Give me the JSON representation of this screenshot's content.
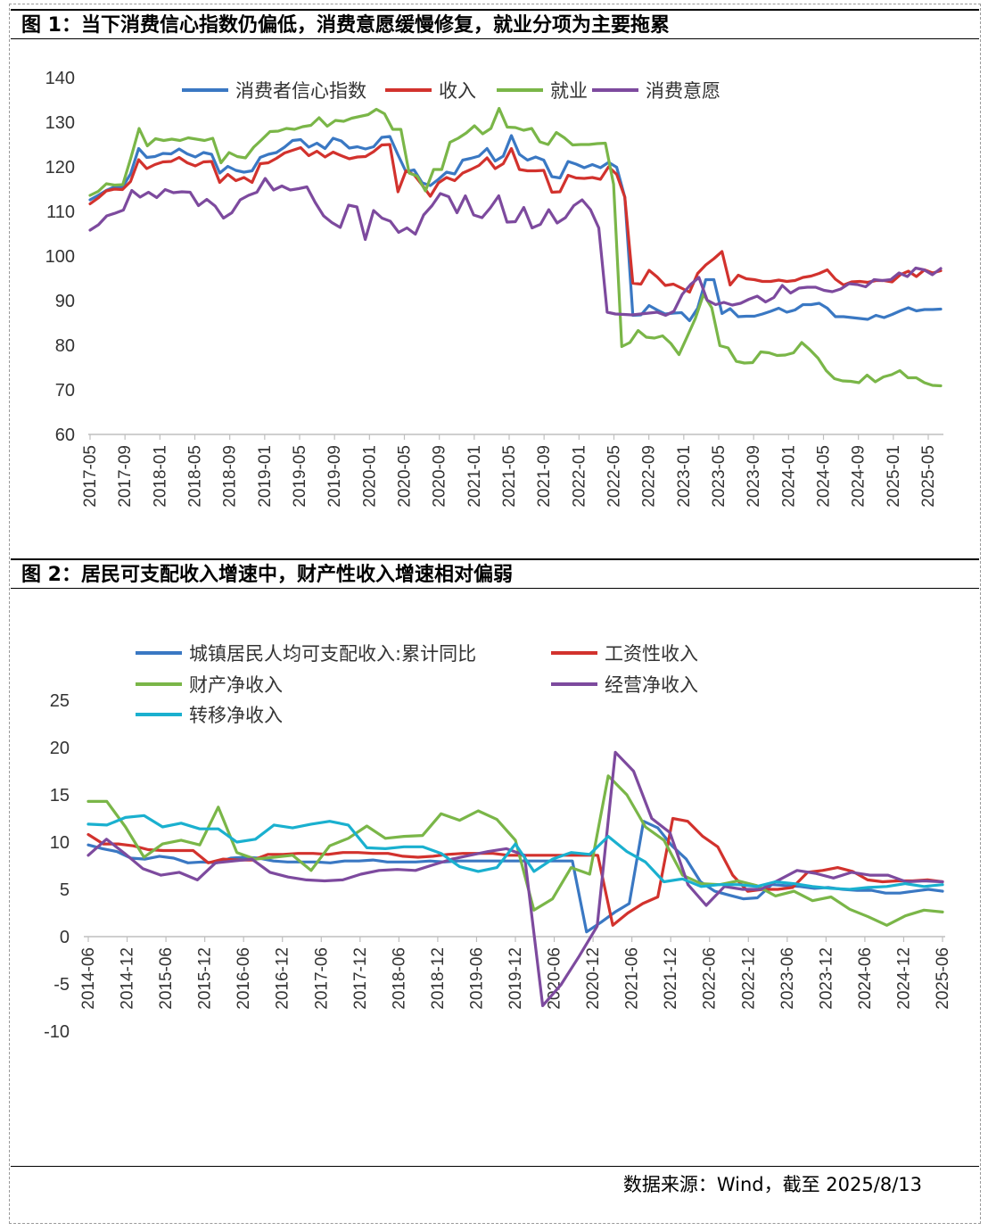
{
  "figure1": {
    "title": "图 1：当下消费信心指数仍偏低，消费意愿缓慢修复，就业分项为主要拖累",
    "chart_data": {
      "type": "line",
      "x_start": "2017-05",
      "x_end": "2025-07",
      "x_tick_labels": [
        "2017-05",
        "2017-09",
        "2018-01",
        "2018-05",
        "2018-09",
        "2019-01",
        "2019-05",
        "2019-09",
        "2020-01",
        "2020-05",
        "2020-09",
        "2021-01",
        "2021-05",
        "2021-09",
        "2022-01",
        "2022-05",
        "2022-09",
        "2023-01",
        "2023-05",
        "2023-09",
        "2024-01",
        "2024-05",
        "2024-09",
        "2025-01",
        "2025-05"
      ],
      "ylim": [
        60,
        140
      ],
      "yticks": [
        60,
        70,
        80,
        90,
        100,
        110,
        120,
        130,
        140
      ],
      "grid": false,
      "legend_position": "top",
      "series": [
        {
          "name": "消费者信心指数",
          "color": "#3a78c3",
          "values": [
            112.6,
            113.6,
            114.7,
            115.5,
            115.4,
            118.4,
            124.1,
            122.1,
            122.3,
            123.0,
            122.9,
            124.0,
            122.9,
            122.2,
            123.2,
            122.8,
            118.6,
            120.1,
            119.2,
            118.8,
            119.1,
            122.1,
            122.8,
            123.2,
            124.4,
            125.9,
            126.1,
            124.4,
            125.3,
            124.1,
            126.4,
            125.8,
            124.2,
            124.5,
            124.0,
            124.5,
            126.6,
            126.8,
            122.7,
            118.9,
            119.3,
            116.4,
            115.8,
            117.2,
            118.8,
            118.4,
            121.5,
            121.9,
            122.4,
            124.1,
            121.3,
            122.4,
            127.0,
            122.8,
            121.5,
            122.2,
            121.5,
            117.8,
            117.5,
            121.2,
            120.6,
            119.8,
            120.5,
            119.8,
            121.0,
            119.9,
            113.2,
            86.7,
            86.8,
            88.9,
            87.9,
            87.0,
            87.2,
            87.3,
            85.5,
            88.3,
            94.7,
            94.7,
            87.1,
            88.2,
            86.4,
            86.5,
            86.5,
            87.0,
            87.6,
            88.3,
            87.4,
            87.9,
            89.1,
            89.1,
            89.4,
            88.3,
            86.4,
            86.4,
            86.2,
            86.0,
            85.8,
            86.7,
            86.2,
            86.9,
            87.7,
            88.4,
            87.7,
            88.0,
            88.0,
            88.1
          ]
        },
        {
          "name": "收入",
          "color": "#d2322d",
          "values": [
            111.7,
            113.0,
            114.6,
            115.0,
            114.9,
            116.7,
            121.6,
            119.6,
            120.5,
            121.1,
            121.2,
            122.1,
            120.9,
            120.2,
            121.1,
            121.2,
            116.5,
            118.3,
            116.9,
            117.6,
            116.5,
            120.7,
            120.9,
            121.9,
            123.1,
            123.7,
            124.3,
            122.5,
            123.5,
            122.2,
            123.3,
            122.5,
            121.8,
            122.2,
            122.3,
            123.4,
            124.9,
            125.0,
            114.4,
            119.1,
            118.2,
            115.9,
            113.4,
            116.4,
            117.6,
            116.9,
            118.6,
            119.4,
            120.3,
            122.0,
            119.6,
            120.7,
            124.1,
            119.4,
            119.1,
            119.1,
            119.2,
            114.3,
            114.4,
            118.1,
            117.5,
            117.4,
            117.6,
            117.2,
            120.0,
            118.3,
            113.2,
            93.9,
            93.7,
            96.8,
            95.3,
            93.4,
            93.7,
            92.8,
            91.9,
            96.1,
            98.0,
            99.4,
            101.0,
            93.5,
            95.7,
            94.9,
            94.7,
            94.3,
            94.3,
            94.6,
            94.3,
            94.5,
            95.2,
            95.5,
            96.1,
            96.9,
            94.8,
            93.5,
            94.2,
            94.3,
            94.1,
            94.5,
            94.5,
            94.2,
            95.8,
            96.6,
            95.4,
            96.9,
            96.2,
            96.7
          ]
        },
        {
          "name": "就业",
          "color": "#7ab648",
          "values": [
            113.6,
            114.5,
            116.2,
            115.9,
            116.0,
            122.1,
            128.6,
            124.7,
            126.3,
            125.9,
            126.2,
            125.9,
            126.5,
            126.2,
            125.9,
            126.4,
            120.9,
            123.2,
            122.3,
            122.0,
            124.4,
            126.1,
            127.9,
            128.0,
            128.6,
            128.4,
            129.0,
            129.3,
            131.0,
            129.1,
            130.4,
            130.2,
            130.9,
            131.3,
            131.7,
            132.9,
            131.9,
            128.4,
            128.4,
            118.6,
            117.9,
            114.6,
            119.4,
            119.4,
            125.5,
            126.4,
            127.6,
            129.2,
            127.4,
            128.6,
            133.1,
            128.9,
            128.8,
            128.2,
            128.6,
            125.6,
            125.0,
            127.7,
            126.5,
            124.9,
            125.0,
            125.0,
            125.2,
            125.3,
            116.1,
            79.7,
            80.6,
            83.3,
            81.8,
            81.6,
            82.1,
            80.4,
            77.9,
            81.9,
            86.0,
            91.4,
            88.4,
            79.9,
            79.4,
            76.4,
            76.0,
            76.1,
            78.5,
            78.3,
            77.7,
            77.8,
            78.3,
            80.6,
            79.0,
            77.1,
            74.3,
            72.5,
            72.0,
            71.9,
            71.6,
            73.3,
            71.8,
            72.9,
            73.4,
            74.3,
            72.7,
            72.7,
            71.6,
            71.0,
            70.9
          ]
        },
        {
          "name": "消费意愿",
          "color": "#7d4a9e",
          "values": [
            105.8,
            107.0,
            109.0,
            109.6,
            110.3,
            114.7,
            113.2,
            114.3,
            113.1,
            114.9,
            114.2,
            114.4,
            114.3,
            111.3,
            112.7,
            111.2,
            108.5,
            109.7,
            112.6,
            113.6,
            114.3,
            117.4,
            114.8,
            115.7,
            114.8,
            115.1,
            115.5,
            112.0,
            109.0,
            107.5,
            106.4,
            111.4,
            111.0,
            103.7,
            110.2,
            108.5,
            107.8,
            105.3,
            106.3,
            104.9,
            109.2,
            111.3,
            114.0,
            113.3,
            109.7,
            113.5,
            109.2,
            108.6,
            110.8,
            113.5,
            107.6,
            107.7,
            110.9,
            106.3,
            107.1,
            110.4,
            107.4,
            108.6,
            111.3,
            112.6,
            110.4,
            106.3,
            87.4,
            87.0,
            86.9,
            86.8,
            87.0,
            87.2,
            87.4,
            86.7,
            87.6,
            91.4,
            93.6,
            95.2,
            90.1,
            89.1,
            89.6,
            89.0,
            89.4,
            90.3,
            91.0,
            89.7,
            90.7,
            93.4,
            91.7,
            92.8,
            93.0,
            93.0,
            92.3,
            92.0,
            92.6,
            93.8,
            93.6,
            93.1,
            94.7,
            94.5,
            94.7,
            96.2,
            95.4,
            97.3,
            96.9,
            95.8,
            97.2
          ]
        }
      ]
    }
  },
  "figure2": {
    "title": "图 2：居民可支配收入增速中，财产性收入增速相对偏弱",
    "chart_data": {
      "type": "line",
      "x_start": "2014-06",
      "x_end": "2025-06",
      "x_frequency": "quarterly",
      "x_tick_labels": [
        "2014-06",
        "2014-12",
        "2015-06",
        "2015-12",
        "2016-06",
        "2016-12",
        "2017-06",
        "2017-12",
        "2018-06",
        "2018-12",
        "2019-06",
        "2019-12",
        "2020-06",
        "2020-12",
        "2021-06",
        "2021-12",
        "2022-06",
        "2022-12",
        "2023-06",
        "2023-12",
        "2024-06",
        "2024-12",
        "2025-06"
      ],
      "ylim": [
        -10,
        25
      ],
      "yticks": [
        -10,
        -5,
        0,
        5,
        10,
        15,
        20,
        25
      ],
      "grid": false,
      "legend_position": "top",
      "series": [
        {
          "name": "城镇居民人均可支配收入:累计同比",
          "color": "#3a78c3",
          "values": [
            9.7,
            9.3,
            9.0,
            8.3,
            8.2,
            8.5,
            8.3,
            7.8,
            7.9,
            7.8,
            8.3,
            8.4,
            8.3,
            8.0,
            7.9,
            7.9,
            7.9,
            7.8,
            8.0,
            8.0,
            8.1,
            7.9,
            7.9,
            7.9,
            8.0,
            7.9,
            8.0,
            8.0,
            8.0,
            8.0,
            8.0,
            8.0,
            8.0,
            8.0,
            8.0,
            0.5,
            1.5,
            2.6,
            3.5,
            12.2,
            11.5,
            9.6,
            8.2,
            5.8,
            4.8,
            4.4,
            4.0,
            4.1,
            5.5,
            5.4,
            5.3,
            5.1,
            5.2,
            5.0,
            4.9,
            4.9,
            4.6,
            4.6,
            4.8,
            5.0,
            4.8
          ]
        },
        {
          "name": "工资性收入",
          "color": "#d2322d",
          "values": [
            10.8,
            9.8,
            9.8,
            9.6,
            9.2,
            9.1,
            9.1,
            9.1,
            7.8,
            8.2,
            8.1,
            8.1,
            8.7,
            8.7,
            8.8,
            8.8,
            8.7,
            8.9,
            8.9,
            8.8,
            8.8,
            8.5,
            8.4,
            8.5,
            8.7,
            8.8,
            8.8,
            8.8,
            8.6,
            8.6,
            8.6,
            8.6,
            8.6,
            8.6,
            8.6,
            1.2,
            2.5,
            3.5,
            4.2,
            12.5,
            12.2,
            10.6,
            9.5,
            6.5,
            4.8,
            5.0,
            5.0,
            5.2,
            6.8,
            7.0,
            7.3,
            6.9,
            6.0,
            5.8,
            5.9,
            5.9,
            6.0,
            5.8
          ]
        },
        {
          "name": "财产净收入",
          "color": "#7ab648",
          "values": [
            14.3,
            14.3,
            11.6,
            8.4,
            9.8,
            10.2,
            9.7,
            13.7,
            8.9,
            8.2,
            8.4,
            8.6,
            7.0,
            9.6,
            10.4,
            11.7,
            10.4,
            10.6,
            10.7,
            13.0,
            12.3,
            13.3,
            12.4,
            10.2,
            2.8,
            4.0,
            7.3,
            6.6,
            17.0,
            15.0,
            11.6,
            10.2,
            6.5,
            5.6,
            5.5,
            5.9,
            5.4,
            4.3,
            4.8,
            3.8,
            4.2,
            2.9,
            2.1,
            1.2,
            2.2,
            2.8,
            2.6
          ]
        },
        {
          "name": "经营净收入",
          "color": "#7d4a9e",
          "values": [
            8.6,
            10.3,
            8.8,
            7.2,
            6.5,
            6.8,
            6.0,
            7.8,
            8.0,
            8.2,
            6.8,
            6.3,
            6.0,
            5.9,
            6.0,
            6.6,
            7.0,
            7.1,
            7.0,
            7.6,
            8.2,
            8.6,
            9.0,
            9.3,
            8.6,
            -7.3,
            -5.1,
            -2.1,
            1.1,
            19.5,
            17.5,
            12.5,
            11.0,
            5.5,
            3.3,
            5.3,
            5.0,
            5.0,
            6.0,
            7.0,
            6.7,
            6.2,
            6.8,
            6.5,
            6.5,
            5.8,
            5.9,
            5.8
          ]
        },
        {
          "name": "转移净收入",
          "color": "#1ab0cf",
          "values": [
            11.9,
            11.8,
            12.6,
            12.8,
            11.6,
            12.0,
            11.4,
            11.4,
            10.0,
            10.3,
            11.8,
            11.5,
            11.9,
            12.2,
            11.8,
            9.4,
            9.3,
            9.5,
            9.5,
            8.8,
            7.4,
            6.9,
            7.3,
            9.8,
            6.9,
            8.2,
            8.9,
            8.7,
            10.6,
            9.0,
            7.9,
            5.8,
            6.1,
            5.3,
            5.5,
            5.5,
            5.3,
            5.8,
            5.6,
            5.3,
            5.1,
            5.0,
            5.2,
            5.3,
            5.6,
            5.3,
            5.5
          ]
        }
      ]
    }
  },
  "source": "数据来源：Wind，截至 2025/8/13"
}
